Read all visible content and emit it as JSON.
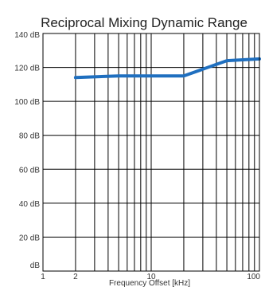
{
  "chart_data": {
    "type": "line",
    "title": "Reciprocal Mixing Dynamic Range",
    "xlabel": "Frequency Offset [kHz]",
    "ylabel": "",
    "x_scale": "log",
    "xlim": [
      1,
      100
    ],
    "ylim": [
      0,
      140
    ],
    "grid": true,
    "x_tick_labels": [
      "1",
      "2",
      "10",
      "100"
    ],
    "y_tick_labels": [
      "dB",
      "20 dB",
      "40 dB",
      "60 dB",
      "80 dB",
      "100 dB",
      "120 dB",
      "140 dB"
    ],
    "series": [
      {
        "x": [
          2,
          5,
          20,
          50,
          100
        ],
        "y": [
          114,
          115,
          115,
          124,
          125
        ]
      }
    ],
    "colors": {
      "line": "#1f6fbf",
      "grid": "#000000",
      "frame": "#000000"
    }
  }
}
